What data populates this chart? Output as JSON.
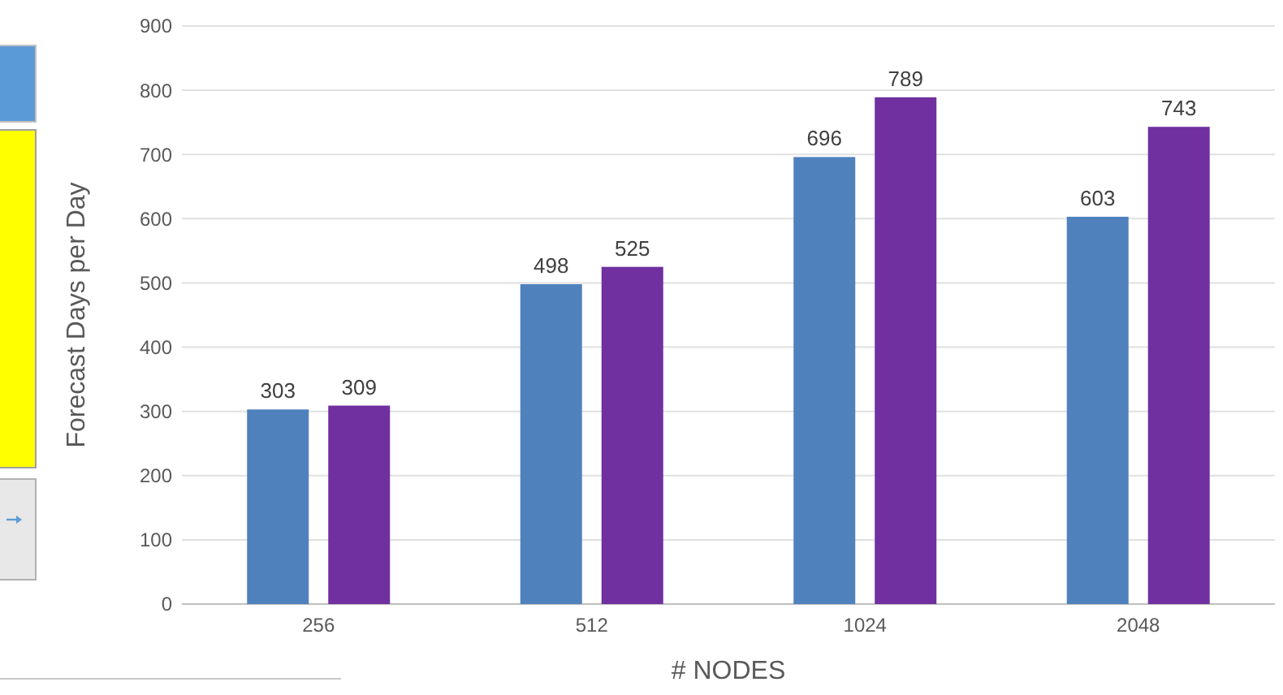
{
  "chart_data": {
    "type": "bar",
    "xlabel": "# NODES",
    "ylabel": "Forecast Days per Day",
    "categories": [
      "256",
      "512",
      "1024",
      "2048"
    ],
    "series": [
      {
        "color": "#4f81bd",
        "values": [
          303,
          498,
          696,
          603
        ]
      },
      {
        "color": "#7030a0",
        "values": [
          309,
          525,
          789,
          743
        ]
      }
    ],
    "ylim": [
      0,
      900
    ],
    "yticks": [
      0,
      100,
      200,
      300,
      400,
      500,
      600,
      700,
      800,
      900
    ],
    "grid": "y",
    "data_labels": true
  }
}
